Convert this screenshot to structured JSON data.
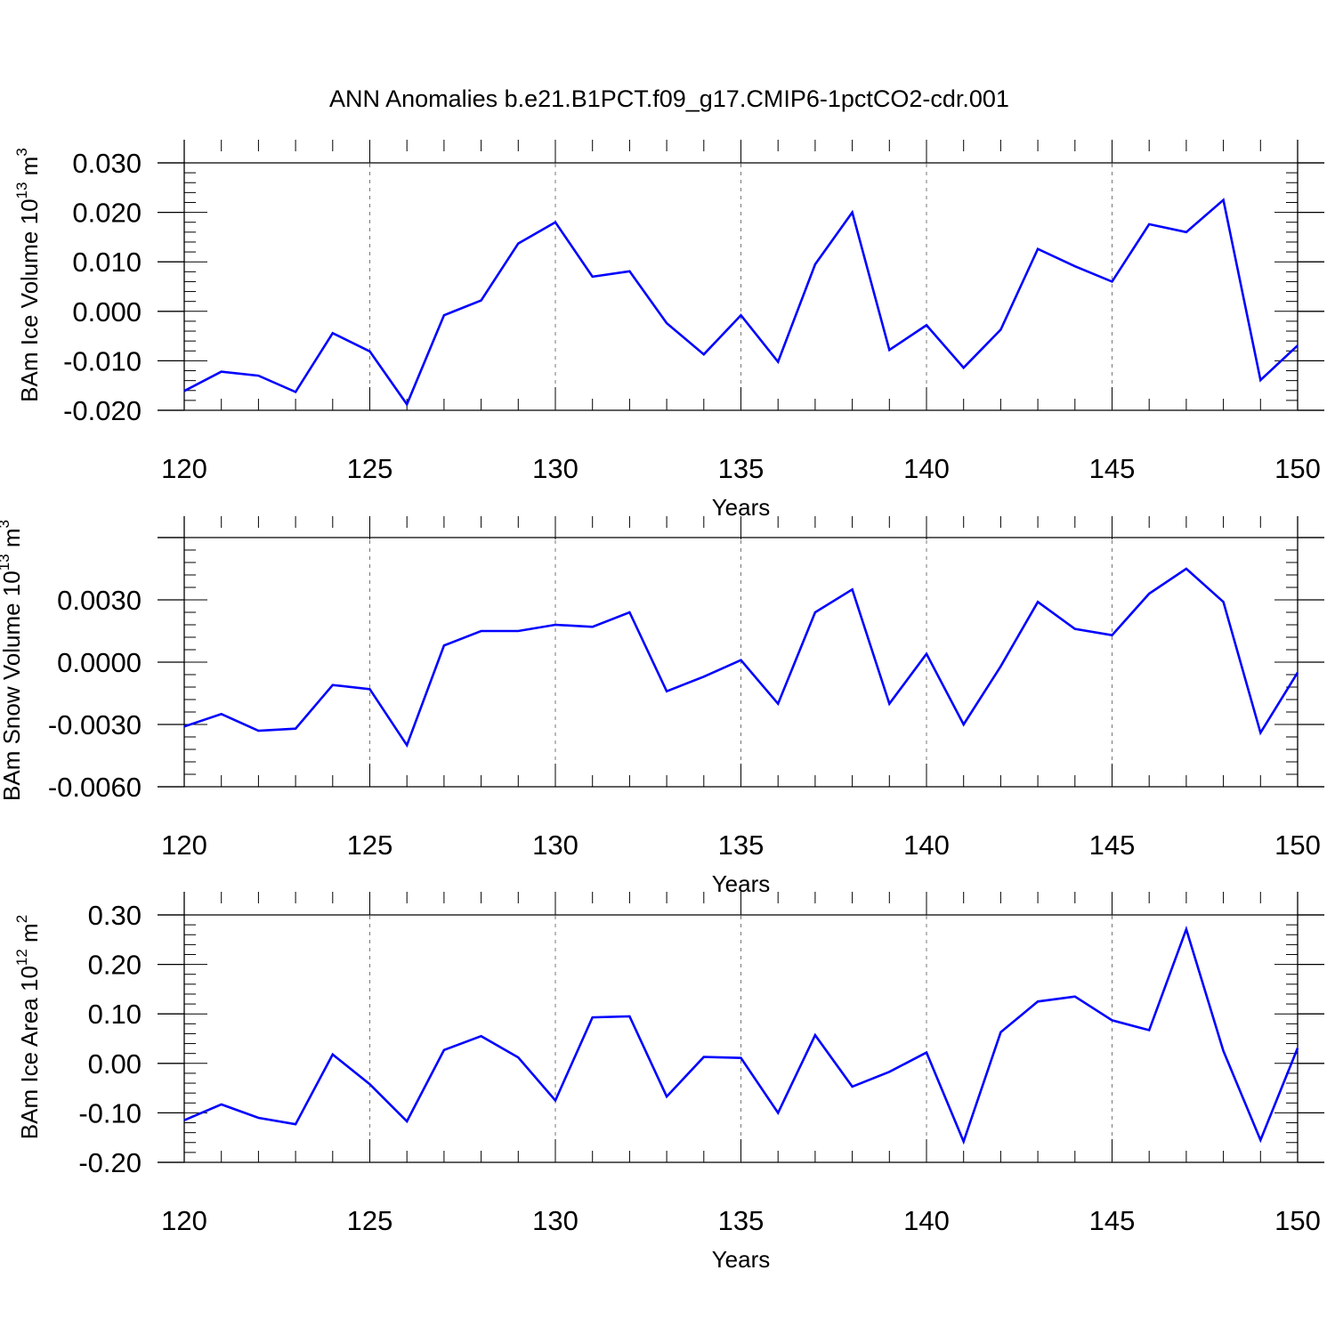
{
  "title": "ANN Anomalies b.e21.B1PCT.f09_g17.CMIP6-1pctCO2-cdr.001",
  "colors": {
    "line": "#0000ff",
    "axis": "#000000",
    "grid": "#777777"
  },
  "panels": [
    {
      "ylabel_text": "BAm Ice Volume 10",
      "ylabel_exp": "13",
      "ylabel_unit": " m",
      "ylabel_unit_exp": "3",
      "xlabel": "Years"
    },
    {
      "ylabel_text": "BAm Snow Volume 10",
      "ylabel_exp": "13",
      "ylabel_unit": " m",
      "ylabel_unit_exp": "3",
      "xlabel": "Years"
    },
    {
      "ylabel_text": "BAm Ice Area 10",
      "ylabel_exp": "12",
      "ylabel_unit": " m",
      "ylabel_unit_exp": "2",
      "xlabel": "Years"
    }
  ],
  "chart_data": [
    {
      "type": "line",
      "xlabel": "Years",
      "ylabel": "BAm Ice Volume 10^13 m^3",
      "xlim": [
        120,
        150
      ],
      "ylim": [
        -0.02,
        0.03
      ],
      "xticks": [
        120,
        125,
        130,
        135,
        140,
        145,
        150
      ],
      "yticks": [
        -0.02,
        -0.01,
        0.0,
        0.01,
        0.02,
        0.03
      ],
      "ytick_labels": [
        "-0.020",
        "-0.010",
        "0.000",
        "0.010",
        "0.020",
        "0.030"
      ],
      "x": [
        120,
        121,
        122,
        123,
        124,
        125,
        126,
        127,
        128,
        129,
        130,
        131,
        132,
        133,
        134,
        135,
        136,
        137,
        138,
        139,
        140,
        141,
        142,
        143,
        144,
        145,
        146,
        147,
        148,
        149,
        150
      ],
      "values": [
        -0.0161,
        -0.0122,
        -0.013,
        -0.0163,
        -0.0044,
        -0.0081,
        -0.0188,
        -0.0008,
        0.0022,
        0.0137,
        0.018,
        0.007,
        0.0081,
        -0.0024,
        -0.0087,
        -0.0008,
        -0.0102,
        0.0095,
        0.02,
        -0.0078,
        -0.0028,
        -0.0114,
        -0.0037,
        0.0126,
        0.0091,
        0.006,
        0.0176,
        0.016,
        0.0225,
        -0.0139,
        -0.0069
      ],
      "grid": "dashed vertical at major x ticks"
    },
    {
      "type": "line",
      "xlabel": "Years",
      "ylabel": "BAm Snow Volume 10^13 m^3",
      "xlim": [
        120,
        150
      ],
      "ylim": [
        -0.006,
        0.006
      ],
      "xticks": [
        120,
        125,
        130,
        135,
        140,
        145,
        150
      ],
      "yticks": [
        -0.006,
        -0.003,
        0.0,
        0.003
      ],
      "ytick_labels": [
        "-0.0060",
        "-0.0030",
        "0.0000",
        "0.0030"
      ],
      "x": [
        120,
        121,
        122,
        123,
        124,
        125,
        126,
        127,
        128,
        129,
        130,
        131,
        132,
        133,
        134,
        135,
        136,
        137,
        138,
        139,
        140,
        141,
        142,
        143,
        144,
        145,
        146,
        147,
        148,
        149,
        150
      ],
      "values": [
        -0.0031,
        -0.0025,
        -0.0033,
        -0.0032,
        -0.0011,
        -0.0013,
        -0.004,
        0.0008,
        0.0015,
        0.0015,
        0.0018,
        0.0017,
        0.0024,
        -0.0014,
        -0.0007,
        0.0001,
        -0.002,
        0.0024,
        0.0035,
        -0.002,
        0.0004,
        -0.003,
        -0.0002,
        0.0029,
        0.0016,
        0.0013,
        0.0033,
        0.0045,
        0.0029,
        -0.0034,
        -0.0005
      ],
      "grid": "dashed vertical at major x ticks"
    },
    {
      "type": "line",
      "xlabel": "Years",
      "ylabel": "BAm Ice Area 10^12 m^2",
      "xlim": [
        120,
        150
      ],
      "ylim": [
        -0.2,
        0.3
      ],
      "xticks": [
        120,
        125,
        130,
        135,
        140,
        145,
        150
      ],
      "yticks": [
        -0.2,
        -0.1,
        0.0,
        0.1,
        0.2,
        0.3
      ],
      "ytick_labels": [
        "-0.20",
        "-0.10",
        "0.00",
        "0.10",
        "0.20",
        "0.30"
      ],
      "x": [
        120,
        121,
        122,
        123,
        124,
        125,
        126,
        127,
        128,
        129,
        130,
        131,
        132,
        133,
        134,
        135,
        136,
        137,
        138,
        139,
        140,
        141,
        142,
        143,
        144,
        145,
        146,
        147,
        148,
        149,
        150
      ],
      "values": [
        -0.115,
        -0.083,
        -0.11,
        -0.123,
        0.018,
        -0.042,
        -0.117,
        0.027,
        0.055,
        0.012,
        -0.075,
        0.093,
        0.095,
        -0.067,
        0.013,
        0.011,
        -0.1,
        0.057,
        -0.047,
        -0.017,
        0.022,
        -0.158,
        0.063,
        0.125,
        0.135,
        0.087,
        0.067,
        0.271,
        0.025,
        -0.155,
        0.031
      ],
      "grid": "dashed vertical at major x ticks"
    }
  ]
}
